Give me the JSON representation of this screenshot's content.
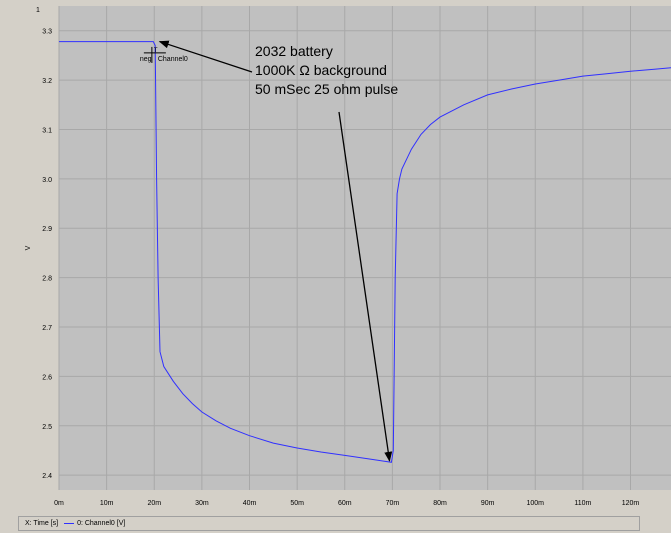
{
  "panel": {
    "index_label": "1"
  },
  "chart_data": {
    "type": "line",
    "title": "",
    "xlabel": "",
    "ylabel": "V",
    "xlim": [
      0,
      0.1285
    ],
    "ylim": [
      2.37,
      3.35
    ],
    "grid": true,
    "x_ticks": [
      {
        "value": 0.0,
        "label": "0m"
      },
      {
        "value": 0.01,
        "label": "10m"
      },
      {
        "value": 0.02,
        "label": "20m"
      },
      {
        "value": 0.03,
        "label": "30m"
      },
      {
        "value": 0.04,
        "label": "40m"
      },
      {
        "value": 0.05,
        "label": "50m"
      },
      {
        "value": 0.06,
        "label": "60m"
      },
      {
        "value": 0.07,
        "label": "70m"
      },
      {
        "value": 0.08,
        "label": "80m"
      },
      {
        "value": 0.09,
        "label": "90m"
      },
      {
        "value": 0.1,
        "label": "100m"
      },
      {
        "value": 0.11,
        "label": "110m"
      },
      {
        "value": 0.12,
        "label": "120m"
      }
    ],
    "y_ticks": [
      {
        "value": 2.4,
        "label": "2.4"
      },
      {
        "value": 2.5,
        "label": "2.5"
      },
      {
        "value": 2.6,
        "label": "2.6"
      },
      {
        "value": 2.7,
        "label": "2.7"
      },
      {
        "value": 2.8,
        "label": "2.8"
      },
      {
        "value": 2.9,
        "label": "2.9"
      },
      {
        "value": 3.0,
        "label": "3.0"
      },
      {
        "value": 3.1,
        "label": "3.1"
      },
      {
        "value": 3.2,
        "label": "3.2"
      },
      {
        "value": 3.3,
        "label": "3.3"
      }
    ],
    "series": [
      {
        "name": "0: Channel0",
        "unit": "V",
        "color": "#3030ff",
        "points": [
          [
            0.0,
            3.278
          ],
          [
            0.004,
            3.278
          ],
          [
            0.008,
            3.278
          ],
          [
            0.012,
            3.278
          ],
          [
            0.016,
            3.278
          ],
          [
            0.0198,
            3.278
          ],
          [
            0.0202,
            3.27
          ],
          [
            0.0205,
            3.0
          ],
          [
            0.0208,
            2.8
          ],
          [
            0.0212,
            2.65
          ],
          [
            0.022,
            2.62
          ],
          [
            0.024,
            2.59
          ],
          [
            0.026,
            2.565
          ],
          [
            0.028,
            2.545
          ],
          [
            0.03,
            2.528
          ],
          [
            0.033,
            2.51
          ],
          [
            0.036,
            2.495
          ],
          [
            0.04,
            2.48
          ],
          [
            0.045,
            2.465
          ],
          [
            0.05,
            2.455
          ],
          [
            0.055,
            2.447
          ],
          [
            0.06,
            2.44
          ],
          [
            0.065,
            2.433
          ],
          [
            0.0698,
            2.426
          ],
          [
            0.0702,
            2.45
          ],
          [
            0.0706,
            2.8
          ],
          [
            0.071,
            2.97
          ],
          [
            0.0715,
            3.0
          ],
          [
            0.072,
            3.02
          ],
          [
            0.074,
            3.06
          ],
          [
            0.076,
            3.09
          ],
          [
            0.078,
            3.11
          ],
          [
            0.08,
            3.125
          ],
          [
            0.085,
            3.15
          ],
          [
            0.09,
            3.17
          ],
          [
            0.095,
            3.182
          ],
          [
            0.1,
            3.192
          ],
          [
            0.105,
            3.2
          ],
          [
            0.11,
            3.208
          ],
          [
            0.115,
            3.213
          ],
          [
            0.12,
            3.218
          ],
          [
            0.125,
            3.222
          ],
          [
            0.1285,
            3.225
          ]
        ]
      }
    ],
    "annotations": [
      {
        "lines": [
          "2032 battery",
          "1000K Ω background",
          "50 mSec 25 ohm pulse"
        ],
        "arrow_targets": [
          [
            0.0203,
            3.278
          ],
          [
            0.0694,
            2.425
          ]
        ]
      }
    ],
    "marker": {
      "label": "neg",
      "channel_label": "Channel0",
      "tick_label": "T",
      "x": 0.0195,
      "y": 3.255
    }
  },
  "legend": {
    "x_axis_text": "X: Time [s]",
    "series_text": "0: Channel0 [V]"
  }
}
